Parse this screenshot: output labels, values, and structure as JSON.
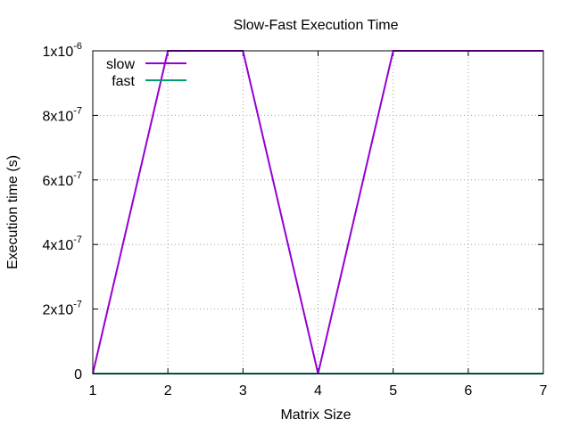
{
  "chart_data": {
    "type": "line",
    "title": "Slow-Fast Execution Time",
    "xlabel": "Matrix Size",
    "ylabel": "Execution time (s)",
    "xlim": [
      1,
      7
    ],
    "ylim": [
      0,
      1e-06
    ],
    "grid": true,
    "legend_position": "top-left",
    "x": [
      1,
      2,
      3,
      4,
      5,
      6,
      7
    ],
    "x_ticks": [
      "1",
      "2",
      "3",
      "4",
      "5",
      "6",
      "7"
    ],
    "y_ticks": [
      {
        "value": 0,
        "mantissa": "0",
        "exponent": ""
      },
      {
        "value": 2e-07,
        "mantissa": "2x10",
        "exponent": "-7"
      },
      {
        "value": 4e-07,
        "mantissa": "4x10",
        "exponent": "-7"
      },
      {
        "value": 6e-07,
        "mantissa": "6x10",
        "exponent": "-7"
      },
      {
        "value": 8e-07,
        "mantissa": "8x10",
        "exponent": "-7"
      },
      {
        "value": 1e-06,
        "mantissa": "1x10",
        "exponent": "-6"
      }
    ],
    "series": [
      {
        "name": "slow",
        "color": "#9400d3",
        "values": [
          0,
          1e-06,
          1e-06,
          0,
          1e-06,
          1e-06,
          1e-06
        ]
      },
      {
        "name": "fast",
        "color": "#009e73",
        "values": [
          0,
          0,
          0,
          0,
          0,
          0,
          0
        ]
      }
    ]
  }
}
